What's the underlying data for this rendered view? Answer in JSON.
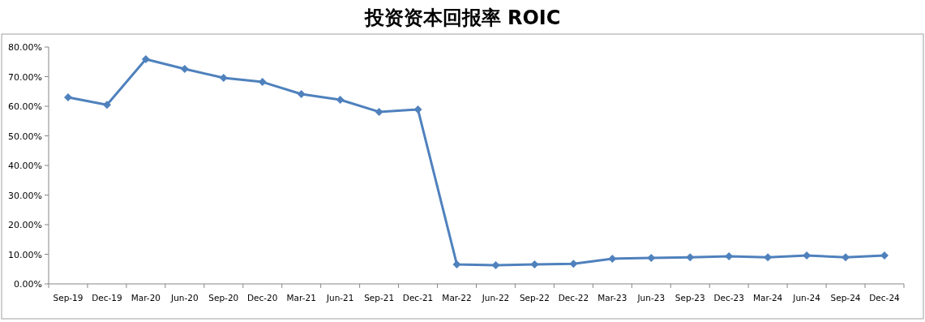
{
  "chart_data": {
    "type": "line",
    "title": "投资资本回报率 ROIC",
    "categories": [
      "Sep-19",
      "Dec-19",
      "Mar-20",
      "Jun-20",
      "Sep-20",
      "Dec-20",
      "Mar-21",
      "Jun-21",
      "Sep-21",
      "Dec-21",
      "Mar-22",
      "Jun-22",
      "Sep-22",
      "Dec-22",
      "Mar-23",
      "Jun-23",
      "Sep-23",
      "Dec-23",
      "Mar-24",
      "Jun-24",
      "Sep-24",
      "Dec-24"
    ],
    "series": [
      {
        "color": "#4f81bd",
        "values": [
          63.0,
          60.5,
          75.9,
          72.6,
          69.6,
          68.2,
          64.1,
          62.2,
          58.1,
          58.9,
          6.6,
          6.3,
          6.6,
          6.8,
          8.5,
          8.8,
          9.0,
          9.3,
          9.0,
          9.6,
          9.0,
          9.6
        ]
      }
    ],
    "ylim": [
      0,
      80
    ],
    "yticks": [
      {
        "value": 0,
        "label": "0.00%"
      },
      {
        "value": 10,
        "label": "10.00%"
      },
      {
        "value": 20,
        "label": "20.00%"
      },
      {
        "value": 30,
        "label": "30.00%"
      },
      {
        "value": 40,
        "label": "40.00%"
      },
      {
        "value": 50,
        "label": "50.00%"
      },
      {
        "value": 60,
        "label": "60.00%"
      },
      {
        "value": 70,
        "label": "70.00%"
      },
      {
        "value": 80,
        "label": "80.00%"
      }
    ],
    "marker": "diamond",
    "line_style": "solid"
  }
}
